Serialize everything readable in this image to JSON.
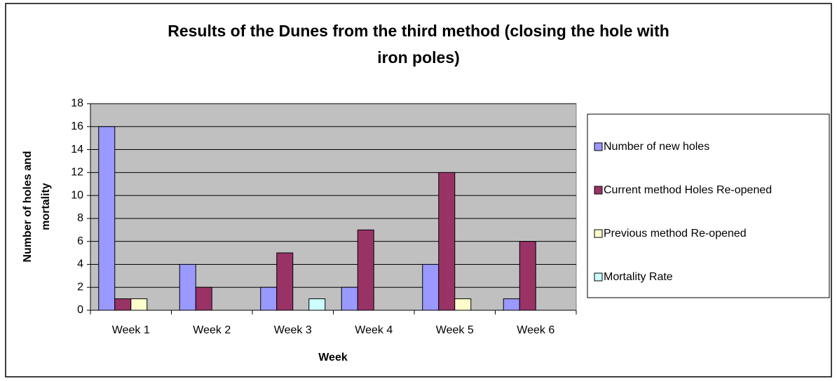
{
  "chart_data": {
    "type": "bar",
    "title": [
      "Results of the Dunes from the third method (closing the hole with",
      "iron poles)"
    ],
    "x_label": "Week",
    "y_label": [
      "Number of holes and",
      "mortality"
    ],
    "categories": [
      "Week 1",
      "Week 2",
      "Week 3",
      "Week 4",
      "Week 5",
      "Week 6"
    ],
    "series": [
      {
        "name": "Number of new holes",
        "color": "#9999ff",
        "values": [
          16,
          4,
          2,
          2,
          4,
          1
        ]
      },
      {
        "name": "Current method Holes Re-opened",
        "color": "#993366",
        "values": [
          1,
          2,
          5,
          7,
          12,
          6
        ]
      },
      {
        "name": "Previous method  Re-opened",
        "color": "#ffffcc",
        "values": [
          1,
          0,
          0,
          0,
          1,
          0
        ]
      },
      {
        "name": "Mortality Rate",
        "color": "#ccffff",
        "values": [
          0,
          0,
          1,
          0,
          0,
          0
        ]
      }
    ],
    "ylim": [
      0,
      18
    ],
    "yticks": [
      0,
      2,
      4,
      6,
      8,
      10,
      12,
      14,
      16,
      18
    ],
    "grid": true,
    "legend": "right"
  }
}
